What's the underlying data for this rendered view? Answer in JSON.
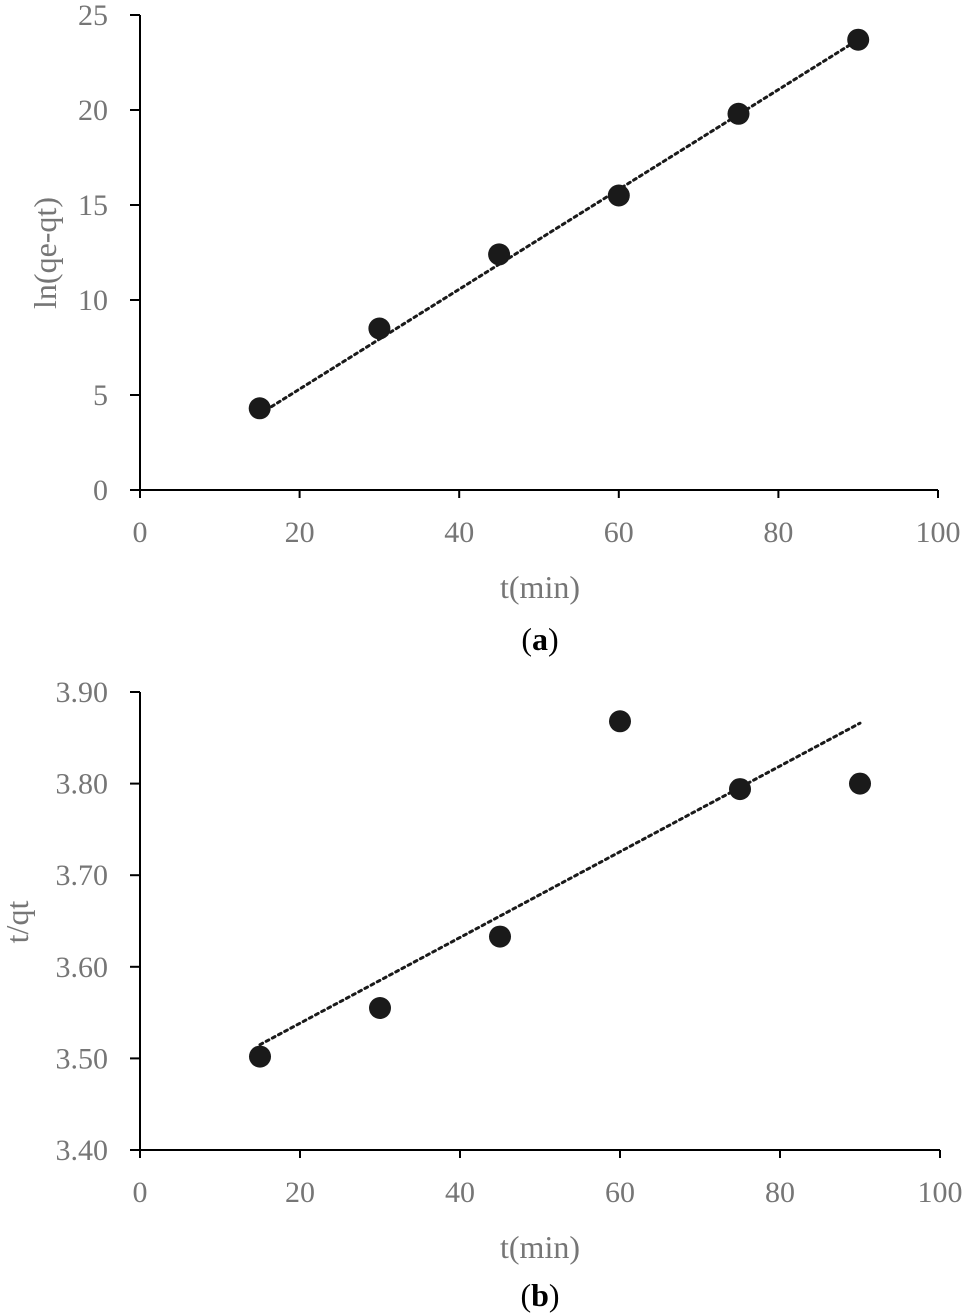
{
  "chart_data": [
    {
      "type": "scatter",
      "panel_label": "a",
      "title": "",
      "xlabel": "t(min)",
      "ylabel": "ln(qe-qt)",
      "xlim": [
        0,
        100
      ],
      "ylim": [
        0,
        25
      ],
      "xticks": [
        "0",
        "20",
        "40",
        "60",
        "80",
        "100"
      ],
      "yticks": [
        "0",
        "5",
        "10",
        "15",
        "20",
        "25"
      ],
      "grid": false,
      "legend": "none",
      "series": [
        {
          "x": [
            15,
            30,
            45,
            60,
            75,
            90
          ],
          "y": [
            4.3,
            8.5,
            12.4,
            15.5,
            19.8,
            23.7
          ],
          "color": "#1a1a1a"
        }
      ],
      "trendline": {
        "style": "dotted",
        "x": [
          15,
          90
        ],
        "y": [
          4.0,
          23.7
        ],
        "color": "#1a1a1a"
      }
    },
    {
      "type": "scatter",
      "panel_label": "b",
      "title": "",
      "xlabel": "t(min)",
      "ylabel": "t/qt",
      "xlim": [
        0,
        100
      ],
      "ylim": [
        3.4,
        3.9
      ],
      "xticks": [
        "0",
        "20",
        "40",
        "60",
        "80",
        "100"
      ],
      "yticks": [
        "3.40",
        "3.50",
        "3.60",
        "3.70",
        "3.80",
        "3.90"
      ],
      "grid": false,
      "legend": "none",
      "series": [
        {
          "x": [
            15,
            30,
            45,
            60,
            75,
            90
          ],
          "y": [
            3.502,
            3.555,
            3.633,
            3.868,
            3.794,
            3.8
          ],
          "color": "#1a1a1a"
        }
      ],
      "trendline": {
        "style": "dotted",
        "x": [
          15,
          90
        ],
        "y": [
          3.515,
          3.866
        ],
        "color": "#1a1a1a"
      }
    }
  ]
}
